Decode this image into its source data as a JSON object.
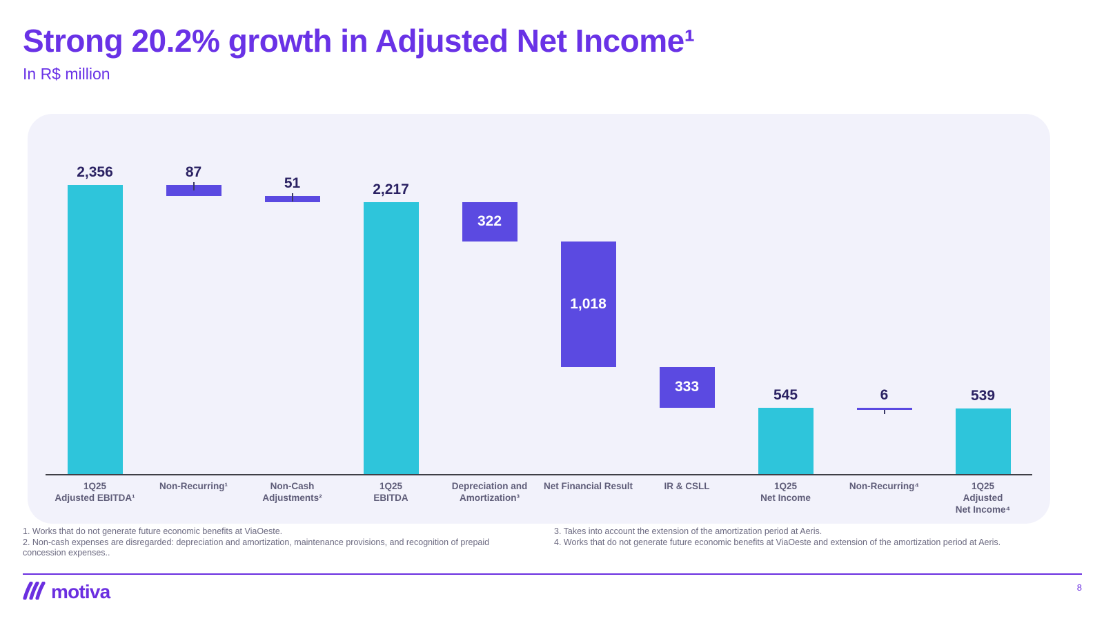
{
  "chart_data": {
    "type": "bar",
    "variant": "waterfall",
    "title": "Strong 20.2% growth in Adjusted Net Income¹",
    "subtitle": "In R$ million",
    "ylabel": "R$ million",
    "ylim": [
      0,
      2356
    ],
    "grid": false,
    "legend": "none",
    "columns": [
      {
        "label": "1Q25\nAdjusted EBITDA¹",
        "value": 2356,
        "display": "2,356",
        "kind": "total",
        "color": "teal",
        "label_position": "above"
      },
      {
        "label": "Non-Recurring¹",
        "value": 87,
        "display": "87",
        "kind": "delta",
        "color": "purple",
        "label_position": "above",
        "tick": "top"
      },
      {
        "label": "Non-Cash\nAdjustments²",
        "value": 51,
        "display": "51",
        "kind": "delta",
        "color": "purple",
        "label_position": "above",
        "tick": "top"
      },
      {
        "label": "1Q25\nEBITDA",
        "value": 2217,
        "display": "2,217",
        "kind": "total",
        "color": "teal",
        "label_position": "above"
      },
      {
        "label": "Depreciation and\nAmortization³",
        "value": 322,
        "display": "322",
        "kind": "delta",
        "color": "purple",
        "label_position": "inside"
      },
      {
        "label": "Net Financial Result",
        "value": 1018,
        "display": "1,018",
        "kind": "delta",
        "color": "purple",
        "label_position": "inside"
      },
      {
        "label": "IR & CSLL",
        "value": 333,
        "display": "333",
        "kind": "delta",
        "color": "purple",
        "label_position": "inside"
      },
      {
        "label": "1Q25\nNet Income",
        "value": 545,
        "display": "545",
        "kind": "total",
        "color": "teal",
        "label_position": "above"
      },
      {
        "label": "Non-Recurring⁴",
        "value": 6,
        "display": "6",
        "kind": "delta",
        "color": "purple",
        "label_position": "above",
        "tick": "bottom"
      },
      {
        "label": "1Q25\nAdjusted\nNet Income⁴",
        "value": 539,
        "display": "539",
        "kind": "total",
        "color": "teal",
        "label_position": "above"
      }
    ]
  },
  "footnotes": [
    "1. Works that do not generate future economic benefits at ViaOeste.",
    "2. Non-cash expenses are disregarded: depreciation and amortization, maintenance provisions, and recognition of prepaid concession expenses..",
    "3. Takes into account the extension of the amortization period at Aeris.",
    "4. Works that do not generate future economic benefits at ViaOeste and extension of the amortization period at Aeris."
  ],
  "footer": {
    "logo_text": "motiva",
    "page_number": "8"
  },
  "colors": {
    "accent_purple": "#6932E6",
    "bar_teal": "#2EC5DB",
    "bar_purple": "#5B4AE1",
    "value_label_navy": "#2B2263",
    "axis_label_slate": "#5E5C78",
    "panel_background": "#F2F2FB",
    "footer_purple": "#6B2FE0"
  }
}
